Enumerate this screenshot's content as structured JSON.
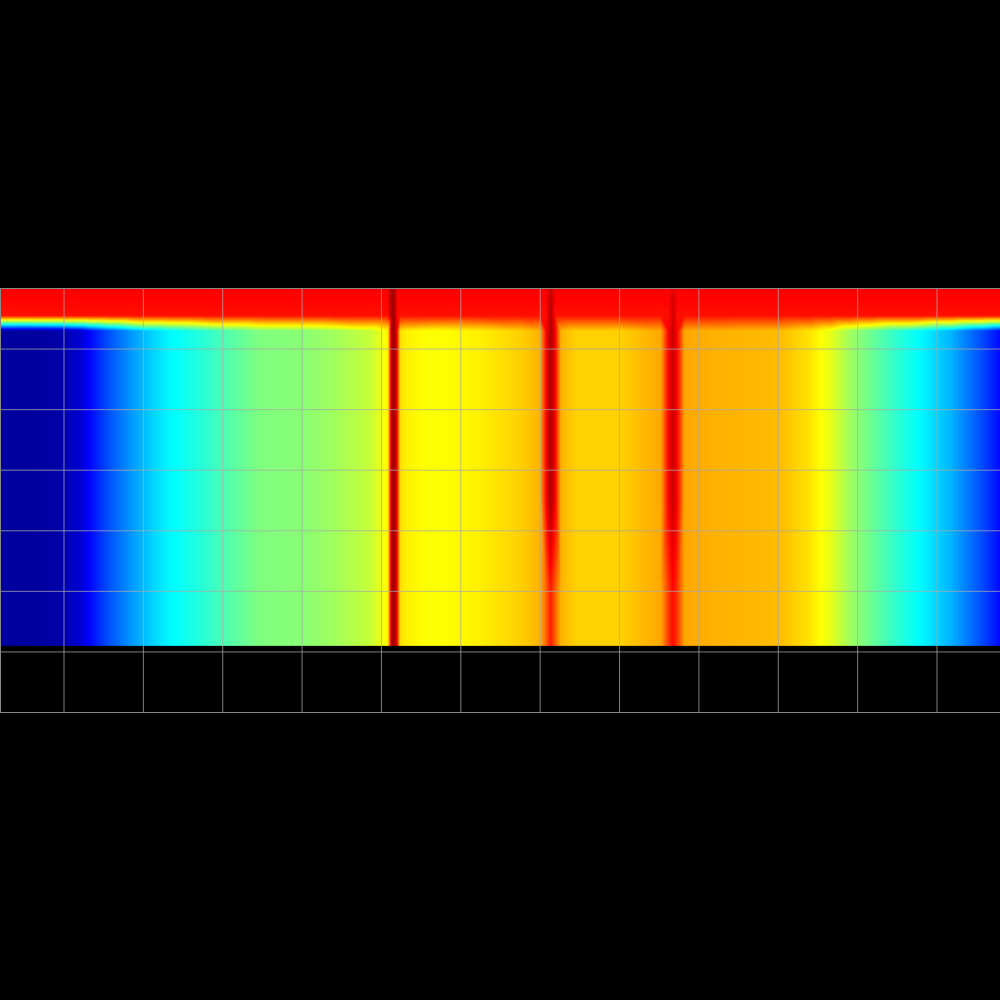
{
  "chart_data": {
    "type": "heatmap",
    "x": [
      -0.8,
      -0.43,
      -0.05,
      0.2,
      0.33,
      0.55,
      0.83,
      1.1,
      1.34,
      1.72,
      2.1,
      2.47,
      3.0,
      3.36,
      3.86,
      4.08,
      4.13,
      4.17,
      4.2,
      4.23,
      4.3,
      4.62,
      5.25,
      5.75,
      6.0,
      6.08,
      6.13,
      6.19,
      6.26,
      6.45,
      7.01,
      7.52,
      7.62,
      7.67,
      7.73,
      7.82,
      8.27,
      9.03,
      9.41,
      9.66,
      9.92,
      10.17,
      10.55,
      10.8,
      11.18,
      11.56,
      11.8
    ],
    "y": [
      7,
      6.55,
      6.3,
      5.0,
      3.5,
      2.0,
      1.1
    ],
    "values": [
      [
        0.88,
        0.88,
        0.88,
        0.88,
        0.88,
        0.88,
        0.88,
        0.88,
        0.88,
        0.88,
        0.88,
        0.88,
        0.88,
        0.88,
        0.88,
        0.88,
        0.97,
        0.95,
        0.88,
        0.88,
        0.88,
        0.88,
        0.88,
        0.88,
        0.88,
        0.88,
        0.93,
        0.88,
        0.88,
        0.88,
        0.88,
        0.88,
        0.88,
        0.9,
        0.88,
        0.88,
        0.88,
        0.88,
        0.88,
        0.88,
        0.88,
        0.88,
        0.88,
        0.88,
        0.88,
        0.88,
        0.88
      ],
      [
        0.86,
        0.86,
        0.86,
        0.86,
        0.86,
        0.86,
        0.86,
        0.86,
        0.86,
        0.86,
        0.86,
        0.86,
        0.86,
        0.86,
        0.86,
        0.86,
        0.97,
        0.95,
        0.86,
        0.86,
        0.86,
        0.86,
        0.86,
        0.86,
        0.86,
        0.86,
        0.95,
        0.86,
        0.86,
        0.86,
        0.86,
        0.86,
        0.86,
        0.92,
        0.86,
        0.86,
        0.86,
        0.86,
        0.86,
        0.86,
        0.86,
        0.86,
        0.86,
        0.86,
        0.86,
        0.86,
        0.86
      ],
      [
        0.03,
        0.03,
        0.04,
        0.08,
        0.13,
        0.2,
        0.27,
        0.33,
        0.37,
        0.41,
        0.46,
        0.5,
        0.51,
        0.53,
        0.57,
        0.63,
        0.97,
        0.95,
        0.88,
        0.66,
        0.64,
        0.62,
        0.64,
        0.67,
        0.7,
        0.88,
        0.96,
        0.88,
        0.7,
        0.67,
        0.67,
        0.71,
        0.88,
        0.93,
        0.87,
        0.71,
        0.7,
        0.69,
        0.65,
        0.6,
        0.53,
        0.48,
        0.41,
        0.37,
        0.3,
        0.2,
        0.13
      ],
      [
        0.03,
        0.03,
        0.04,
        0.08,
        0.13,
        0.2,
        0.27,
        0.33,
        0.37,
        0.41,
        0.46,
        0.5,
        0.51,
        0.53,
        0.57,
        0.63,
        0.97,
        0.95,
        0.88,
        0.66,
        0.64,
        0.62,
        0.64,
        0.67,
        0.7,
        0.88,
        0.96,
        0.88,
        0.7,
        0.67,
        0.67,
        0.71,
        0.88,
        0.93,
        0.87,
        0.71,
        0.7,
        0.69,
        0.65,
        0.6,
        0.53,
        0.48,
        0.41,
        0.37,
        0.3,
        0.2,
        0.13
      ],
      [
        0.03,
        0.03,
        0.04,
        0.08,
        0.13,
        0.2,
        0.27,
        0.33,
        0.37,
        0.41,
        0.46,
        0.5,
        0.51,
        0.53,
        0.57,
        0.63,
        0.97,
        0.95,
        0.88,
        0.66,
        0.64,
        0.62,
        0.64,
        0.67,
        0.7,
        0.88,
        0.96,
        0.88,
        0.7,
        0.67,
        0.67,
        0.71,
        0.88,
        0.93,
        0.87,
        0.71,
        0.7,
        0.69,
        0.65,
        0.6,
        0.53,
        0.48,
        0.41,
        0.37,
        0.3,
        0.2,
        0.13
      ],
      [
        0.03,
        0.03,
        0.04,
        0.08,
        0.13,
        0.2,
        0.27,
        0.33,
        0.37,
        0.41,
        0.46,
        0.5,
        0.51,
        0.53,
        0.57,
        0.63,
        0.97,
        0.95,
        0.88,
        0.66,
        0.64,
        0.62,
        0.64,
        0.67,
        0.7,
        0.78,
        0.85,
        0.78,
        0.7,
        0.67,
        0.67,
        0.71,
        0.82,
        0.87,
        0.82,
        0.71,
        0.7,
        0.69,
        0.65,
        0.6,
        0.53,
        0.48,
        0.41,
        0.37,
        0.3,
        0.2,
        0.13
      ],
      [
        0.03,
        0.03,
        0.04,
        0.08,
        0.13,
        0.2,
        0.27,
        0.33,
        0.37,
        0.41,
        0.46,
        0.5,
        0.51,
        0.53,
        0.57,
        0.63,
        0.97,
        0.95,
        0.88,
        0.66,
        0.64,
        0.62,
        0.64,
        0.67,
        0.7,
        0.78,
        0.85,
        0.78,
        0.7,
        0.67,
        0.67,
        0.71,
        0.82,
        0.87,
        0.82,
        0.71,
        0.7,
        0.69,
        0.65,
        0.6,
        0.53,
        0.48,
        0.41,
        0.37,
        0.3,
        0.2,
        0.13
      ]
    ],
    "xlim": [
      -0.8,
      11.8
    ],
    "ylim": [
      0,
      7
    ],
    "xticks": [
      0,
      1,
      2,
      3,
      4,
      5,
      6,
      7,
      8,
      9,
      10,
      11
    ],
    "yticks": [
      0,
      1,
      2,
      3,
      4,
      5,
      6,
      7
    ],
    "zlim": [
      0,
      1
    ],
    "grid": true,
    "tick_labels": false
  }
}
